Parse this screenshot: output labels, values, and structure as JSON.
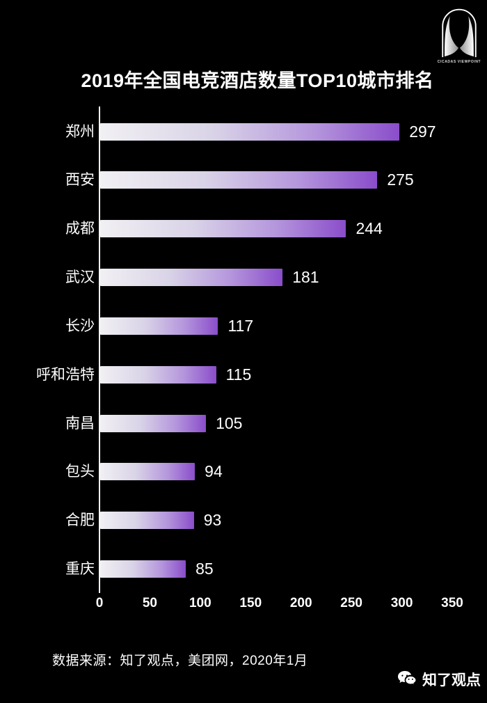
{
  "page": {
    "background": "#000000",
    "text_color": "#ffffff"
  },
  "logo": {
    "caption": "CICADAS VIEWPOINT"
  },
  "title": "2019年全国电竞酒店数量TOP10城市排名",
  "chart_data": {
    "type": "bar",
    "orientation": "horizontal",
    "title": "2019年全国电竞酒店数量TOP10城市排名",
    "categories": [
      "郑州",
      "西安",
      "成都",
      "武汉",
      "长沙",
      "呼和浩特",
      "南昌",
      "包头",
      "合肥",
      "重庆"
    ],
    "values": [
      297,
      275,
      244,
      181,
      117,
      115,
      105,
      94,
      93,
      85
    ],
    "xlabel": "",
    "ylabel": "",
    "xlim": [
      0,
      350
    ],
    "x_ticks": [
      "0",
      "50",
      "100",
      "150",
      "200",
      "250",
      "300",
      "350"
    ],
    "grid": false,
    "value_labels": true,
    "legend": false,
    "bar_gradient": [
      "#f1f0f3",
      "#d9d3e7",
      "#b495dc",
      "#8a4dca"
    ],
    "axis_color": "#ffffff"
  },
  "footer": {
    "source_text": "数据来源：知了观点，美团网，2020年1月",
    "wechat_label": "知了观点"
  }
}
